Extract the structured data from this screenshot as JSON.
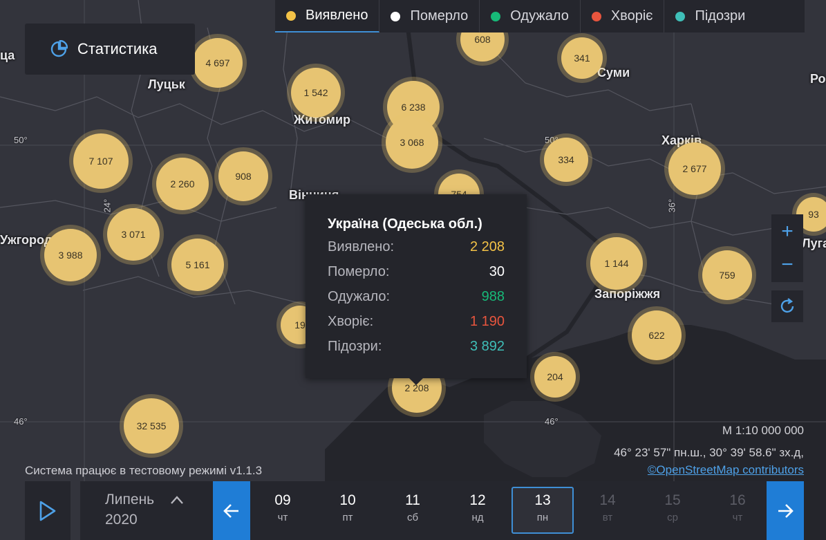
{
  "legend": [
    {
      "label": "Виявлено",
      "color": "#f3c247",
      "active": true
    },
    {
      "label": "Померло",
      "color": "#ffffff",
      "active": false
    },
    {
      "label": "Одужало",
      "color": "#17b978",
      "active": false
    },
    {
      "label": "Хворіє",
      "color": "#e8553e",
      "active": false
    },
    {
      "label": "Підозри",
      "color": "#3fbfb8",
      "active": false
    }
  ],
  "stats_button": {
    "label": "Статистика",
    "icon": "pie-chart-icon"
  },
  "cities": [
    "Луцьк",
    "Житомир",
    "Вінниця",
    "Ужгород",
    "Суми",
    "Харків",
    "Запоріжжя",
    "Луга",
    "Ро",
    "ца"
  ],
  "coords_labels": [
    "50°",
    "50°",
    "46°",
    "46°",
    "24°",
    "36°"
  ],
  "clusters": [
    "4 697",
    "1 542",
    "6 238",
    "3 068",
    "608",
    "341",
    "7 107",
    "2 260",
    "908",
    "334",
    "2 677",
    "3 071",
    "5 161",
    "3 988",
    "754",
    "93",
    "1 144",
    "759",
    "622",
    "19",
    "204",
    "2 208",
    "32 535"
  ],
  "popup": {
    "title": "Україна (Одеська обл.)",
    "rows": [
      {
        "label": "Виявлено:",
        "value": "2 208",
        "color": "#f3c247"
      },
      {
        "label": "Померло:",
        "value": "30",
        "color": "#ffffff"
      },
      {
        "label": "Одужало:",
        "value": "988",
        "color": "#17b978"
      },
      {
        "label": "Хворіє:",
        "value": "1 190",
        "color": "#e8553e"
      },
      {
        "label": "Підозри:",
        "value": "3 892",
        "color": "#3fbfb8"
      }
    ]
  },
  "map_controls": {
    "zoom_in": "+",
    "zoom_out": "−"
  },
  "scale": "М 1:10 000 000",
  "cursor_coords": "46° 23' 57\" пн.ш., 30° 39' 58.6\" зх.д,",
  "attribution": "©OpenStreetMap contributors",
  "system_message": "Система працює в тестовому режимі v1.1.3",
  "timeline": {
    "month": "Липень",
    "year": "2020",
    "days": [
      {
        "num": "09",
        "wd": "чт"
      },
      {
        "num": "10",
        "wd": "пт"
      },
      {
        "num": "11",
        "wd": "сб"
      },
      {
        "num": "12",
        "wd": "нд"
      },
      {
        "num": "13",
        "wd": "пн",
        "selected": true
      },
      {
        "num": "14",
        "wd": "вт",
        "future": true
      },
      {
        "num": "15",
        "wd": "ср",
        "future": true
      },
      {
        "num": "16",
        "wd": "чт",
        "future": true
      }
    ]
  },
  "colors": {
    "accent": "#1f7dd6",
    "background": "#2f3038",
    "panel": "#25262d"
  }
}
